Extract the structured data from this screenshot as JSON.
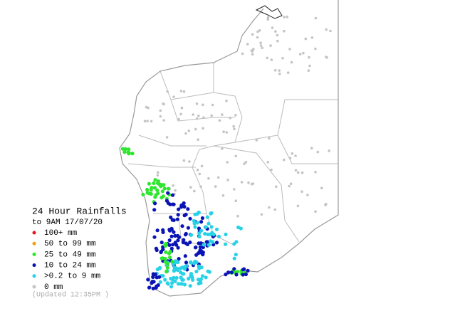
{
  "title": "24 Hour Rainfalls",
  "subtitle": "to 9AM 17/07/20",
  "legend": [
    {
      "label": "100+ mm",
      "color": "#e8141c"
    },
    {
      "label": "50  to 99 mm",
      "color": "#f5a00a"
    },
    {
      "label": "25  to 49 mm",
      "color": "#2ee62e"
    },
    {
      "label": "10  to 24 mm",
      "color": "#0a14b4"
    },
    {
      "label": ">0.2 to 9 mm",
      "color": "#28d2e6"
    },
    {
      "label": "0 mm",
      "color": "#c4c4c4"
    }
  ],
  "updated": "(Updated 12:35PM  )"
}
